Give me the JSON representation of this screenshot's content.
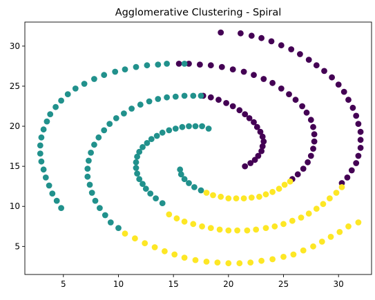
{
  "chart_data": {
    "type": "scatter",
    "title": "Agglomerative Clustering - Spiral",
    "xlabel": "",
    "ylabel": "",
    "xlim": [
      1.5,
      33.0
    ],
    "ylim": [
      1.5,
      33.0
    ],
    "xticks": [
      5,
      10,
      15,
      20,
      25,
      30
    ],
    "yticks": [
      5,
      10,
      15,
      20,
      25,
      30
    ],
    "grid": false,
    "legend": "none",
    "colors": {
      "purple": "#440154",
      "teal": "#21918c",
      "yellow": "#fde725",
      "axis": "#000000"
    },
    "series": [
      {
        "color_key": "purple",
        "points": [
          [
            21.5,
            15.0
          ],
          [
            22.0,
            15.4
          ],
          [
            22.4,
            15.8
          ],
          [
            22.7,
            16.3
          ],
          [
            23.0,
            16.9
          ],
          [
            23.1,
            17.5
          ],
          [
            23.2,
            18.1
          ],
          [
            23.1,
            18.7
          ],
          [
            22.9,
            19.3
          ],
          [
            22.6,
            19.9
          ],
          [
            22.3,
            20.5
          ],
          [
            21.9,
            21.0
          ],
          [
            21.5,
            21.5
          ],
          [
            21.0,
            22.0
          ],
          [
            20.4,
            22.5
          ],
          [
            19.8,
            22.9
          ],
          [
            19.1,
            23.3
          ],
          [
            18.4,
            23.6
          ],
          [
            17.7,
            23.8
          ],
          [
            25.8,
            13.4
          ],
          [
            26.3,
            14.0
          ],
          [
            26.8,
            14.7
          ],
          [
            27.2,
            15.5
          ],
          [
            27.5,
            16.3
          ],
          [
            27.7,
            17.2
          ],
          [
            27.8,
            18.1
          ],
          [
            27.8,
            19.0
          ],
          [
            27.7,
            19.9
          ],
          [
            27.5,
            20.8
          ],
          [
            27.1,
            21.7
          ],
          [
            26.7,
            22.5
          ],
          [
            26.1,
            23.3
          ],
          [
            25.5,
            24.0
          ],
          [
            24.8,
            24.7
          ],
          [
            24.0,
            25.4
          ],
          [
            23.2,
            25.9
          ],
          [
            22.3,
            26.4
          ],
          [
            21.4,
            26.8
          ],
          [
            20.4,
            27.1
          ],
          [
            19.4,
            27.4
          ],
          [
            18.4,
            27.6
          ],
          [
            17.4,
            27.7
          ],
          [
            16.4,
            27.8
          ],
          [
            15.5,
            27.8
          ],
          [
            30.3,
            12.9
          ],
          [
            30.8,
            13.6
          ],
          [
            31.2,
            14.5
          ],
          [
            31.6,
            15.4
          ],
          [
            31.8,
            16.3
          ],
          [
            32.0,
            17.3
          ],
          [
            32.0,
            18.3
          ],
          [
            32.0,
            19.3
          ],
          [
            31.8,
            20.3
          ],
          [
            31.6,
            21.3
          ],
          [
            31.3,
            22.3
          ],
          [
            30.9,
            23.3
          ],
          [
            30.5,
            24.3
          ],
          [
            30.0,
            25.2
          ],
          [
            29.4,
            26.1
          ],
          [
            28.7,
            26.9
          ],
          [
            28.0,
            27.6
          ],
          [
            27.3,
            28.3
          ],
          [
            26.5,
            29.0
          ],
          [
            25.7,
            29.6
          ],
          [
            24.8,
            30.1
          ],
          [
            23.9,
            30.6
          ],
          [
            23.0,
            31.0
          ],
          [
            22.1,
            31.3
          ],
          [
            21.1,
            31.6
          ],
          [
            19.3,
            31.7
          ]
        ]
      },
      {
        "color_key": "teal",
        "points": [
          [
            15.6,
            14.6
          ],
          [
            15.7,
            14.0
          ],
          [
            16.0,
            13.4
          ],
          [
            16.4,
            12.9
          ],
          [
            16.9,
            12.4
          ],
          [
            17.5,
            12.0
          ],
          [
            18.2,
            19.7
          ],
          [
            17.6,
            20.0
          ],
          [
            17.0,
            20.0
          ],
          [
            16.4,
            20.0
          ],
          [
            15.8,
            19.9
          ],
          [
            15.2,
            19.7
          ],
          [
            14.6,
            19.5
          ],
          [
            14.0,
            19.2
          ],
          [
            13.5,
            18.8
          ],
          [
            13.0,
            18.4
          ],
          [
            12.6,
            17.9
          ],
          [
            12.2,
            17.4
          ],
          [
            11.9,
            16.8
          ],
          [
            11.7,
            16.2
          ],
          [
            11.6,
            15.5
          ],
          [
            11.6,
            14.8
          ],
          [
            11.7,
            14.1
          ],
          [
            11.9,
            13.4
          ],
          [
            12.2,
            12.8
          ],
          [
            12.5,
            12.2
          ],
          [
            12.9,
            11.6
          ],
          [
            13.4,
            11.0
          ],
          [
            14.0,
            10.4
          ],
          [
            17.5,
            23.8
          ],
          [
            16.8,
            23.8
          ],
          [
            16.0,
            23.8
          ],
          [
            15.2,
            23.7
          ],
          [
            14.4,
            23.6
          ],
          [
            13.6,
            23.4
          ],
          [
            12.8,
            23.1
          ],
          [
            12.0,
            22.7
          ],
          [
            11.2,
            22.2
          ],
          [
            10.5,
            21.6
          ],
          [
            9.8,
            21.0
          ],
          [
            9.2,
            20.3
          ],
          [
            8.7,
            19.5
          ],
          [
            8.2,
            18.6
          ],
          [
            7.8,
            17.7
          ],
          [
            7.5,
            16.7
          ],
          [
            7.3,
            15.7
          ],
          [
            7.2,
            14.7
          ],
          [
            7.2,
            13.7
          ],
          [
            7.4,
            12.7
          ],
          [
            7.6,
            11.7
          ],
          [
            7.9,
            10.7
          ],
          [
            8.3,
            9.8
          ],
          [
            8.8,
            8.9
          ],
          [
            9.3,
            8.0
          ],
          [
            10.0,
            7.3
          ],
          [
            14.4,
            27.8
          ],
          [
            13.6,
            27.7
          ],
          [
            12.6,
            27.6
          ],
          [
            11.6,
            27.4
          ],
          [
            10.6,
            27.1
          ],
          [
            9.7,
            26.8
          ],
          [
            8.7,
            26.4
          ],
          [
            7.8,
            25.9
          ],
          [
            6.9,
            25.3
          ],
          [
            6.1,
            24.7
          ],
          [
            5.4,
            24.0
          ],
          [
            4.8,
            23.2
          ],
          [
            4.3,
            22.4
          ],
          [
            3.8,
            21.5
          ],
          [
            3.5,
            20.6
          ],
          [
            3.2,
            19.6
          ],
          [
            3.0,
            18.6
          ],
          [
            2.9,
            17.6
          ],
          [
            2.9,
            16.6
          ],
          [
            3.0,
            15.6
          ],
          [
            3.2,
            14.6
          ],
          [
            3.4,
            13.6
          ],
          [
            3.7,
            12.6
          ],
          [
            4.0,
            11.6
          ],
          [
            4.4,
            10.7
          ],
          [
            4.8,
            9.8
          ],
          [
            16.0,
            27.8
          ]
        ]
      },
      {
        "color_key": "yellow",
        "points": [
          [
            18.0,
            11.7
          ],
          [
            18.6,
            11.4
          ],
          [
            19.3,
            11.2
          ],
          [
            20.0,
            11.0
          ],
          [
            20.7,
            11.0
          ],
          [
            21.4,
            11.0
          ],
          [
            22.1,
            11.1
          ],
          [
            22.8,
            11.2
          ],
          [
            23.4,
            11.5
          ],
          [
            24.0,
            11.8
          ],
          [
            24.6,
            12.2
          ],
          [
            25.1,
            12.7
          ],
          [
            25.6,
            13.1
          ],
          [
            14.6,
            9.0
          ],
          [
            15.3,
            8.5
          ],
          [
            16.0,
            8.1
          ],
          [
            16.8,
            7.8
          ],
          [
            17.6,
            7.5
          ],
          [
            18.4,
            7.3
          ],
          [
            19.2,
            7.1
          ],
          [
            20.0,
            7.0
          ],
          [
            20.8,
            7.0
          ],
          [
            21.7,
            7.0
          ],
          [
            22.5,
            7.1
          ],
          [
            23.4,
            7.3
          ],
          [
            24.2,
            7.5
          ],
          [
            25.0,
            7.8
          ],
          [
            25.8,
            8.2
          ],
          [
            26.6,
            8.6
          ],
          [
            27.3,
            9.1
          ],
          [
            28.0,
            9.7
          ],
          [
            28.6,
            10.3
          ],
          [
            29.2,
            11.0
          ],
          [
            29.8,
            11.7
          ],
          [
            30.3,
            12.4
          ],
          [
            10.6,
            6.6
          ],
          [
            11.5,
            6.0
          ],
          [
            12.4,
            5.4
          ],
          [
            13.3,
            4.9
          ],
          [
            14.2,
            4.4
          ],
          [
            15.1,
            4.0
          ],
          [
            16.0,
            3.6
          ],
          [
            17.0,
            3.3
          ],
          [
            18.0,
            3.1
          ],
          [
            19.0,
            3.0
          ],
          [
            20.0,
            2.9
          ],
          [
            21.0,
            2.9
          ],
          [
            22.0,
            3.0
          ],
          [
            23.0,
            3.2
          ],
          [
            24.0,
            3.4
          ],
          [
            25.0,
            3.7
          ],
          [
            25.9,
            4.0
          ],
          [
            26.8,
            4.5
          ],
          [
            27.7,
            5.0
          ],
          [
            28.5,
            5.6
          ],
          [
            29.3,
            6.2
          ],
          [
            30.1,
            6.8
          ],
          [
            30.9,
            7.5
          ],
          [
            31.8,
            8.0
          ]
        ]
      }
    ]
  }
}
